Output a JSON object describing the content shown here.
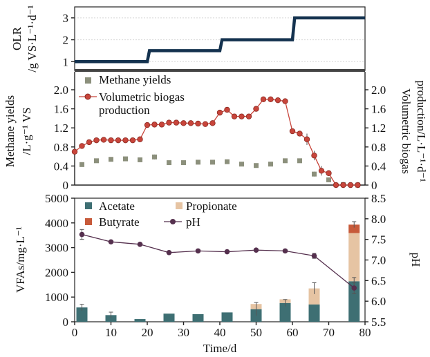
{
  "colors": {
    "olr": "#14324f",
    "methane": "#8c907c",
    "biogas": "#c8453b",
    "acetate": "#3e6f73",
    "propionate": "#e6c4a3",
    "butyrate": "#c75a3a",
    "ph": "#55304e"
  },
  "panels": {
    "olr": {
      "ylabel_line1": "OLR",
      "ylabel_line2": "/g VS·L⁻¹·d⁻¹",
      "yticks": [
        "1",
        "2",
        "3"
      ]
    },
    "biogas": {
      "ylabel_left_line1": "Methane yields",
      "ylabel_left_line2": "/L·g⁻¹ VS",
      "ylabel_right_line1": "Volumetric biogas",
      "ylabel_right_line2": "production/L·L⁻¹·d⁻¹",
      "yticks": [
        "0",
        "0.4",
        "0.8",
        "1.2",
        "1.6",
        "2.0"
      ],
      "legend": {
        "methane": "Methane yields",
        "biogas_line1": "Volumetric biogas",
        "biogas_line2": "production"
      }
    },
    "vfa": {
      "ylabel_left": "VFAs/mg·L⁻¹",
      "ylabel_right": "pH",
      "xlabel": "Time/d",
      "yticks_left": [
        "0",
        "1000",
        "2000",
        "3000",
        "4000",
        "5000"
      ],
      "yticks_right": [
        "5.5",
        "6.0",
        "6.5",
        "7.0",
        "7.5",
        "8.0",
        "8.5"
      ],
      "xticks": [
        "0",
        "10",
        "20",
        "30",
        "40",
        "50",
        "60",
        "70",
        "80"
      ],
      "legend": {
        "acetate": "Acetate",
        "propionate": "Propionate",
        "butyrate": "Butyrate",
        "ph": "pH"
      }
    }
  },
  "chart_data": [
    {
      "type": "line",
      "ylabel": "OLR /g VS·L⁻¹·d⁻¹",
      "ylim": [
        0.6,
        3.5
      ],
      "xlim": [
        0,
        80
      ],
      "series": [
        {
          "x": [
            0,
            20,
            20.6,
            40,
            40.6,
            60,
            60.6,
            80
          ],
          "y": [
            1,
            1,
            1.5,
            1.5,
            2,
            2,
            3,
            3
          ]
        }
      ]
    },
    {
      "type": "line",
      "ylabel": "Methane yields /L·g⁻¹ VS",
      "y2label": "Volumetric biogas production/L·L⁻¹·d⁻¹",
      "ylim": [
        0,
        2.0
      ],
      "y2lim": [
        0,
        2.0
      ],
      "xlim": [
        0,
        80
      ],
      "series": [
        {
          "name": "Methane yields",
          "x": [
            2,
            6,
            10,
            14,
            18,
            22,
            26,
            30,
            34,
            38,
            42,
            46,
            50,
            54,
            58,
            62,
            66,
            70,
            74,
            78
          ],
          "y": [
            0.43,
            0.51,
            0.54,
            0.55,
            0.53,
            0.59,
            0.47,
            0.47,
            0.48,
            0.48,
            0.49,
            0.44,
            0.41,
            0.44,
            0.51,
            0.51,
            0.23,
            0.11,
            0.01,
            0.0
          ],
          "err": [
            0,
            0,
            0,
            0,
            0,
            0.05,
            0,
            0,
            0,
            0,
            0,
            0,
            0,
            0,
            0,
            0,
            0.05,
            0,
            0,
            0
          ]
        },
        {
          "name": "Volumetric biogas production",
          "x": [
            0,
            2,
            4,
            6,
            8,
            10,
            12,
            14,
            16,
            18,
            20,
            22,
            24,
            26,
            28,
            30,
            32,
            34,
            36,
            38,
            40,
            42,
            44,
            46,
            48,
            50,
            52,
            54,
            56,
            58,
            60,
            62,
            64,
            66,
            68,
            70,
            72,
            74,
            76,
            78
          ],
          "y": [
            0.7,
            0.82,
            0.9,
            0.94,
            0.95,
            0.94,
            0.94,
            0.94,
            0.94,
            0.96,
            1.26,
            1.27,
            1.27,
            1.31,
            1.31,
            1.3,
            1.3,
            1.29,
            1.28,
            1.3,
            1.52,
            1.58,
            1.44,
            1.44,
            1.44,
            1.6,
            1.8,
            1.8,
            1.78,
            1.76,
            1.13,
            1.08,
            0.96,
            0.62,
            0.3,
            0.25,
            0.0,
            0.0,
            0.0,
            0.0
          ],
          "err": [
            0.03,
            0.03,
            0,
            0,
            0,
            0,
            0,
            0,
            0,
            0.04,
            0.05,
            0.05,
            0,
            0,
            0,
            0,
            0,
            0,
            0,
            0,
            0,
            0.04,
            0,
            0,
            0,
            0,
            0,
            0,
            0,
            0,
            0,
            0.04,
            0.12,
            0.1,
            0.1,
            0,
            0,
            0,
            0,
            0
          ]
        }
      ]
    },
    {
      "type": "bar",
      "xlabel": "Time/d",
      "ylabel": "VFAs/mg·L⁻¹",
      "y2label": "pH",
      "xlim": [
        0,
        80
      ],
      "ylim": [
        0,
        5000
      ],
      "y2lim": [
        5.5,
        8.5
      ],
      "x": [
        2,
        10,
        18,
        26,
        34,
        42,
        50,
        58,
        66,
        77
      ],
      "series": [
        {
          "name": "Acetate",
          "values": [
            580,
            270,
            110,
            330,
            310,
            380,
            510,
            760,
            700,
            1640
          ],
          "err": [
            130,
            120,
            0,
            0,
            0,
            0,
            270,
            140,
            0,
            150
          ]
        },
        {
          "name": "Propionate",
          "values": [
            0,
            0,
            0,
            0,
            0,
            0,
            210,
            150,
            650,
            1950
          ],
          "err": [
            0,
            0,
            0,
            0,
            0,
            0,
            0,
            0,
            230,
            0
          ]
        },
        {
          "name": "Butyrate",
          "values": [
            0,
            0,
            0,
            0,
            0,
            0,
            0,
            0,
            0,
            340
          ],
          "err": [
            0,
            0,
            0,
            0,
            0,
            0,
            0,
            0,
            0,
            120
          ]
        },
        {
          "name": "pH",
          "axis": "right",
          "values": [
            7.62,
            7.44,
            7.38,
            7.18,
            7.22,
            7.2,
            7.24,
            7.22,
            7.1,
            6.32
          ],
          "err": [
            0.12,
            0,
            0,
            0,
            0,
            0,
            0,
            0,
            0.06,
            0.14
          ]
        }
      ]
    }
  ]
}
